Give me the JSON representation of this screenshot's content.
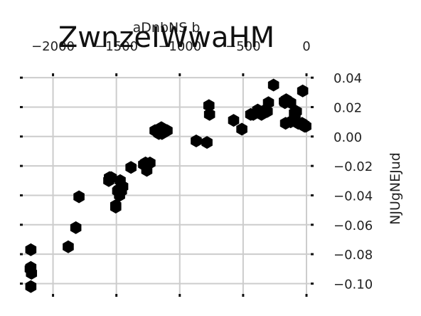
{
  "chart_data": {
    "type": "scatter",
    "title": "ZwnzeIWwaHM",
    "xlabel": "aDnbNS b",
    "ylabel": "NJUgNEJud",
    "x_axis_position": "top",
    "y_axis_position": "right",
    "xlim": [
      -2250,
      45
    ],
    "ylim": [
      -0.108,
      0.042
    ],
    "xticks": [
      -2000,
      -1500,
      -1000,
      -500,
      0
    ],
    "xtick_labels": [
      "−2000",
      "−1500",
      "−1000",
      "−500",
      "0"
    ],
    "yticks": [
      0.04,
      0.02,
      0.0,
      -0.02,
      -0.04,
      -0.06,
      -0.08,
      -0.1
    ],
    "ytick_labels": [
      "0.04",
      "0.02",
      "0.00",
      "−0.02",
      "−0.04",
      "−0.06",
      "−0.08",
      "−0.10"
    ],
    "grid": true,
    "marker": "hexagon",
    "colors": {
      "marker": "#000000",
      "grid": "#cccccc",
      "text": "#222222",
      "background": "#ffffff"
    },
    "series": [
      {
        "x": [
          -2175,
          -2180,
          -2170,
          -2175,
          -2175,
          -1880,
          -1820,
          -1795,
          -1560,
          -1555,
          -1550,
          -1540,
          -1505,
          -1505,
          -1490,
          -1480,
          -1470,
          -1460,
          -1475,
          -1450,
          -1385,
          -1285,
          -1270,
          -1270,
          -1260,
          -1235,
          -1195,
          -1165,
          -1155,
          -1145,
          -1100,
          -1130,
          -1140,
          -785,
          -870,
          -765,
          -770,
          -575,
          -510,
          -420,
          -440,
          -385,
          -355,
          -345,
          -310,
          -260,
          -300,
          -165,
          -170,
          -175,
          -160,
          -125,
          -125,
          -90,
          -95,
          -80,
          -65,
          -35,
          -30,
          -30,
          -15,
          -20,
          -5
        ],
        "y": [
          -0.077,
          -0.09,
          -0.093,
          -0.089,
          -0.102,
          -0.075,
          -0.062,
          -0.041,
          -0.03,
          -0.028,
          -0.028,
          -0.028,
          -0.048,
          -0.047,
          -0.037,
          -0.036,
          -0.03,
          -0.037,
          -0.04,
          -0.034,
          -0.021,
          -0.019,
          -0.018,
          -0.018,
          -0.023,
          -0.018,
          0.004,
          0.002,
          0.004,
          0.006,
          0.004,
          0.004,
          0.002,
          -0.004,
          -0.003,
          0.015,
          0.021,
          0.011,
          0.005,
          0.015,
          0.015,
          0.018,
          0.015,
          0.017,
          0.017,
          0.035,
          0.023,
          0.009,
          0.023,
          0.024,
          0.025,
          0.023,
          0.01,
          0.015,
          0.016,
          0.017,
          0.009,
          0.009,
          0.031,
          0.008,
          0.007,
          0.008,
          0.007
        ]
      }
    ]
  }
}
